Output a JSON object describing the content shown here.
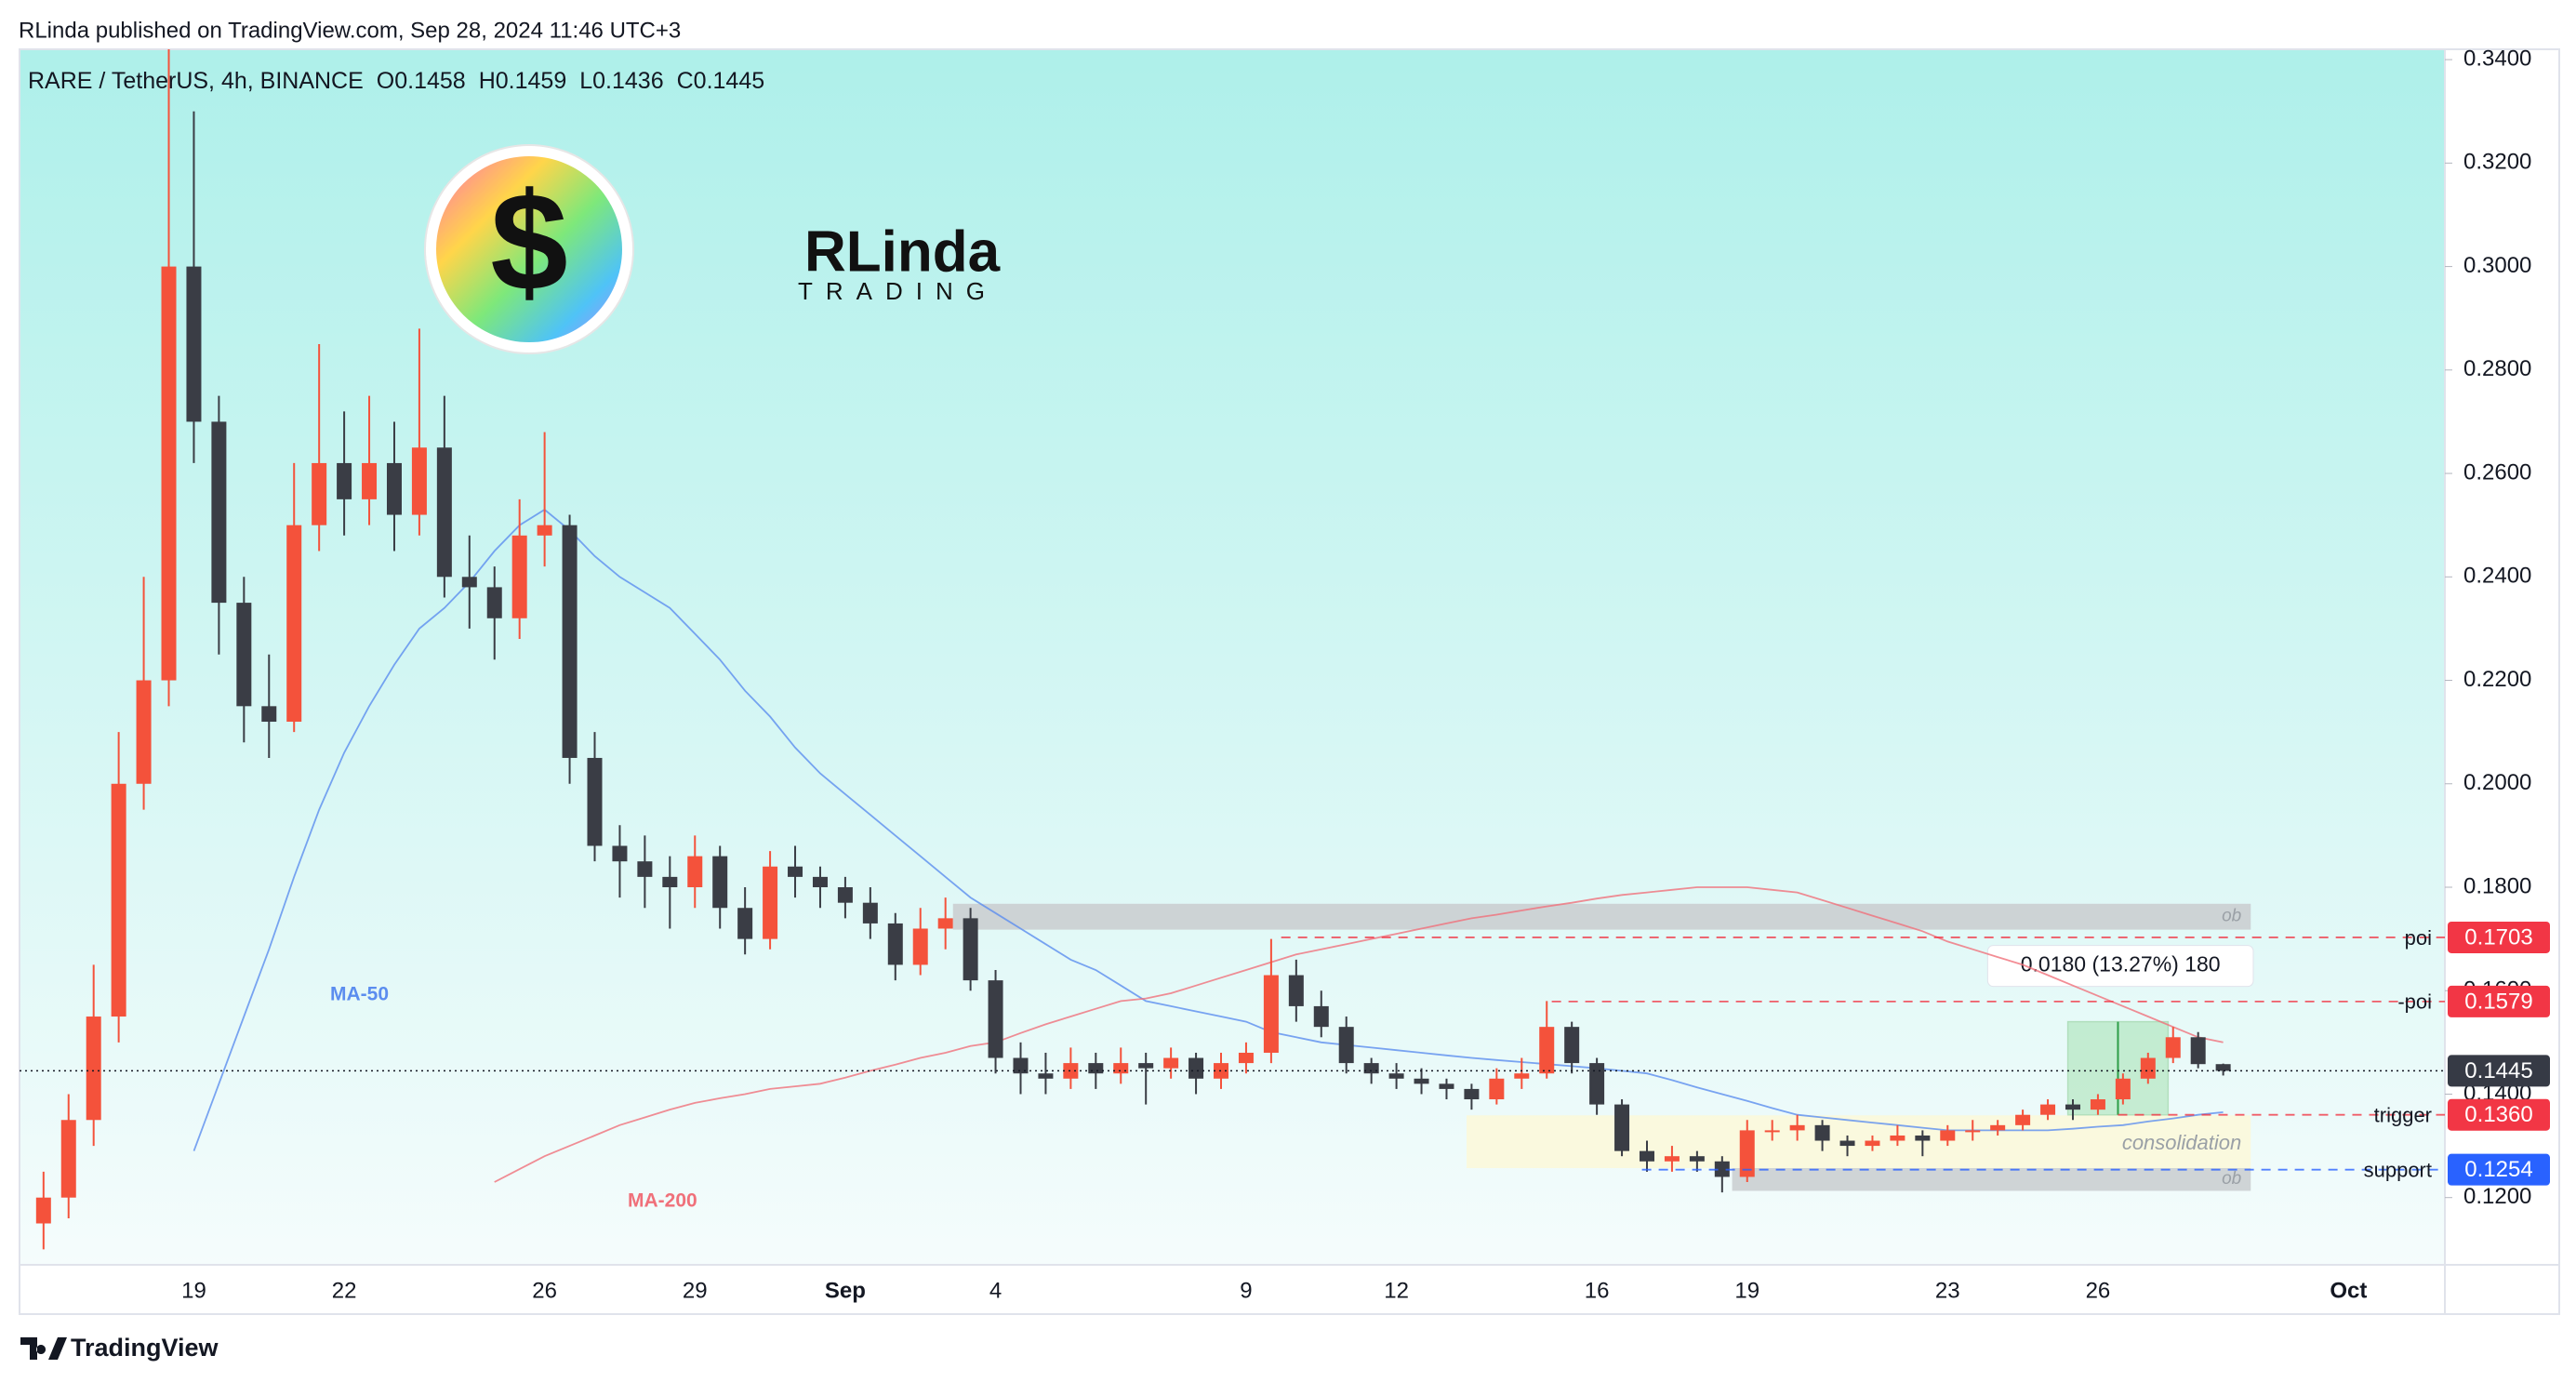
{
  "header": {
    "byline": "RLinda published on TradingView.com, Sep 28, 2024 11:46 UTC+3",
    "symbol": "RARE / TetherUS, 4h, BINANCE",
    "ohlc_letters": [
      "O",
      "H",
      "L",
      "C"
    ]
  },
  "logo": {
    "coin": "$",
    "name": "RLinda",
    "tagline": "TRADING"
  },
  "footer": "TradingView",
  "chart_data": {
    "type": "candlestick",
    "up_color": "#f4523b",
    "down_color": "#3a3d45",
    "categories": [
      null,
      null,
      null,
      null,
      null,
      null,
      "19",
      null,
      null,
      null,
      null,
      null,
      "22",
      null,
      null,
      null,
      null,
      null,
      null,
      null,
      "26",
      null,
      null,
      null,
      null,
      null,
      "29",
      null,
      null,
      null,
      null,
      null,
      "Sep",
      null,
      null,
      null,
      null,
      null,
      "4",
      null,
      null,
      null,
      null,
      null,
      null,
      null,
      null,
      null,
      "9",
      null,
      null,
      null,
      null,
      null,
      "12",
      null,
      null,
      null,
      null,
      null,
      null,
      null,
      "16",
      null,
      null,
      null,
      null,
      null,
      "19",
      null,
      null,
      null,
      null,
      null,
      null,
      null,
      "23",
      null,
      null,
      null,
      null,
      null,
      "26",
      null,
      null,
      null,
      null,
      null,
      null,
      null,
      null,
      null,
      "Oct"
    ],
    "ohlc": [
      [
        0.115,
        0.125,
        0.11,
        0.12
      ],
      [
        0.12,
        0.14,
        0.116,
        0.135
      ],
      [
        0.135,
        0.165,
        0.13,
        0.155
      ],
      [
        0.155,
        0.21,
        0.15,
        0.2
      ],
      [
        0.2,
        0.24,
        0.195,
        0.22
      ],
      [
        0.22,
        0.342,
        0.215,
        0.3
      ],
      [
        0.3,
        0.33,
        0.262,
        0.27
      ],
      [
        0.27,
        0.275,
        0.225,
        0.235
      ],
      [
        0.235,
        0.24,
        0.208,
        0.215
      ],
      [
        0.215,
        0.225,
        0.205,
        0.212
      ],
      [
        0.212,
        0.262,
        0.21,
        0.25
      ],
      [
        0.25,
        0.285,
        0.245,
        0.262
      ],
      [
        0.262,
        0.272,
        0.248,
        0.255
      ],
      [
        0.255,
        0.275,
        0.25,
        0.262
      ],
      [
        0.262,
        0.27,
        0.245,
        0.252
      ],
      [
        0.252,
        0.288,
        0.248,
        0.265
      ],
      [
        0.265,
        0.275,
        0.236,
        0.24
      ],
      [
        0.24,
        0.248,
        0.23,
        0.238
      ],
      [
        0.238,
        0.242,
        0.224,
        0.232
      ],
      [
        0.232,
        0.255,
        0.228,
        0.248
      ],
      [
        0.248,
        0.268,
        0.242,
        0.25
      ],
      [
        0.25,
        0.252,
        0.2,
        0.205
      ],
      [
        0.205,
        0.21,
        0.185,
        0.188
      ],
      [
        0.188,
        0.192,
        0.178,
        0.185
      ],
      [
        0.185,
        0.19,
        0.176,
        0.182
      ],
      [
        0.182,
        0.186,
        0.172,
        0.18
      ],
      [
        0.18,
        0.19,
        0.176,
        0.186
      ],
      [
        0.186,
        0.188,
        0.172,
        0.176
      ],
      [
        0.176,
        0.18,
        0.167,
        0.17
      ],
      [
        0.17,
        0.187,
        0.168,
        0.184
      ],
      [
        0.184,
        0.188,
        0.178,
        0.182
      ],
      [
        0.182,
        0.184,
        0.176,
        0.18
      ],
      [
        0.18,
        0.182,
        0.174,
        0.177
      ],
      [
        0.177,
        0.18,
        0.17,
        0.173
      ],
      [
        0.173,
        0.175,
        0.162,
        0.165
      ],
      [
        0.165,
        0.176,
        0.163,
        0.172
      ],
      [
        0.172,
        0.178,
        0.168,
        0.174
      ],
      [
        0.174,
        0.176,
        0.16,
        0.162
      ],
      [
        0.162,
        0.164,
        0.144,
        0.147
      ],
      [
        0.147,
        0.15,
        0.14,
        0.144
      ],
      [
        0.144,
        0.148,
        0.14,
        0.143
      ],
      [
        0.143,
        0.149,
        0.141,
        0.146
      ],
      [
        0.146,
        0.148,
        0.141,
        0.144
      ],
      [
        0.144,
        0.149,
        0.142,
        0.146
      ],
      [
        0.146,
        0.148,
        0.138,
        0.145
      ],
      [
        0.145,
        0.149,
        0.143,
        0.147
      ],
      [
        0.147,
        0.148,
        0.14,
        0.143
      ],
      [
        0.143,
        0.148,
        0.141,
        0.146
      ],
      [
        0.146,
        0.15,
        0.144,
        0.148
      ],
      [
        0.148,
        0.17,
        0.146,
        0.163
      ],
      [
        0.163,
        0.166,
        0.154,
        0.157
      ],
      [
        0.157,
        0.16,
        0.151,
        0.153
      ],
      [
        0.153,
        0.155,
        0.144,
        0.146
      ],
      [
        0.146,
        0.147,
        0.142,
        0.144
      ],
      [
        0.144,
        0.146,
        0.141,
        0.143
      ],
      [
        0.143,
        0.145,
        0.14,
        0.142
      ],
      [
        0.142,
        0.143,
        0.139,
        0.141
      ],
      [
        0.141,
        0.142,
        0.137,
        0.139
      ],
      [
        0.139,
        0.145,
        0.138,
        0.143
      ],
      [
        0.143,
        0.147,
        0.141,
        0.144
      ],
      [
        0.144,
        0.158,
        0.143,
        0.153
      ],
      [
        0.153,
        0.154,
        0.144,
        0.146
      ],
      [
        0.146,
        0.147,
        0.136,
        0.138
      ],
      [
        0.138,
        0.139,
        0.128,
        0.129
      ],
      [
        0.129,
        0.131,
        0.125,
        0.127
      ],
      [
        0.127,
        0.13,
        0.125,
        0.128
      ],
      [
        0.128,
        0.129,
        0.125,
        0.127
      ],
      [
        0.127,
        0.128,
        0.121,
        0.124
      ],
      [
        0.124,
        0.135,
        0.123,
        0.133
      ],
      [
        0.133,
        0.135,
        0.131,
        0.133
      ],
      [
        0.133,
        0.136,
        0.131,
        0.134
      ],
      [
        0.134,
        0.135,
        0.129,
        0.131
      ],
      [
        0.131,
        0.132,
        0.128,
        0.13
      ],
      [
        0.13,
        0.132,
        0.129,
        0.131
      ],
      [
        0.131,
        0.134,
        0.13,
        0.132
      ],
      [
        0.132,
        0.133,
        0.128,
        0.131
      ],
      [
        0.131,
        0.134,
        0.13,
        0.133
      ],
      [
        0.133,
        0.135,
        0.131,
        0.133
      ],
      [
        0.133,
        0.135,
        0.132,
        0.134
      ],
      [
        0.134,
        0.137,
        0.133,
        0.136
      ],
      [
        0.136,
        0.139,
        0.135,
        0.138
      ],
      [
        0.138,
        0.139,
        0.135,
        0.137
      ],
      [
        0.137,
        0.14,
        0.136,
        0.139
      ],
      [
        0.139,
        0.144,
        0.138,
        0.143
      ],
      [
        0.143,
        0.148,
        0.142,
        0.147
      ],
      [
        0.147,
        0.153,
        0.146,
        0.151
      ],
      [
        0.151,
        0.152,
        0.145,
        0.1458
      ],
      [
        0.1458,
        0.1459,
        0.1436,
        0.1445
      ],
      null,
      null,
      null,
      null,
      null
    ],
    "series": [
      {
        "name": "MA-50",
        "color": "#5b8def",
        "values": [
          null,
          null,
          null,
          null,
          null,
          null,
          0.129,
          0.142,
          0.155,
          0.168,
          0.182,
          0.195,
          0.206,
          0.215,
          0.223,
          0.23,
          0.234,
          0.239,
          0.245,
          0.25,
          0.253,
          0.249,
          0.244,
          0.24,
          0.237,
          0.234,
          0.229,
          0.224,
          0.218,
          0.213,
          0.207,
          0.202,
          0.198,
          0.194,
          0.19,
          0.186,
          0.182,
          0.178,
          0.175,
          0.172,
          0.169,
          0.166,
          0.164,
          0.161,
          0.158,
          0.157,
          0.156,
          0.155,
          0.154,
          0.152,
          0.151,
          0.15,
          0.1495,
          0.149,
          0.1485,
          0.148,
          0.1475,
          0.147,
          0.1466,
          0.1462,
          0.1458,
          0.1454,
          0.145,
          0.1445,
          0.144,
          0.1427,
          0.1413,
          0.14,
          0.1387,
          0.1373,
          0.136,
          0.1355,
          0.135,
          0.1345,
          0.134,
          0.1335,
          0.133,
          0.133,
          0.133,
          0.133,
          0.133,
          0.1333,
          0.1337,
          0.134,
          0.1347,
          0.1353,
          0.136,
          0.1365,
          null,
          null,
          null,
          null,
          null
        ]
      },
      {
        "name": "MA-200",
        "color": "#f0707a",
        "values": [
          null,
          null,
          null,
          null,
          null,
          null,
          null,
          null,
          null,
          null,
          null,
          null,
          null,
          null,
          null,
          null,
          null,
          null,
          0.123,
          0.1255,
          0.128,
          0.13,
          0.132,
          0.134,
          0.1355,
          0.137,
          0.1383,
          0.1392,
          0.14,
          0.141,
          0.1415,
          0.142,
          0.1432,
          0.1445,
          0.1457,
          0.147,
          0.148,
          0.1493,
          0.15,
          0.1518,
          0.1535,
          0.155,
          0.1565,
          0.158,
          0.1585,
          0.1595,
          0.161,
          0.1625,
          0.164,
          0.1655,
          0.167,
          0.168,
          0.169,
          0.17,
          0.171,
          0.172,
          0.173,
          0.174,
          0.1747,
          0.1755,
          0.1763,
          0.177,
          0.1778,
          0.1785,
          0.179,
          0.1795,
          0.18,
          0.18,
          0.18,
          0.1795,
          0.179,
          0.1775,
          0.176,
          0.1745,
          0.173,
          0.1715,
          0.1695,
          0.168,
          0.1665,
          0.165,
          0.163,
          0.161,
          0.159,
          0.157,
          0.155,
          0.153,
          0.151,
          0.15,
          null,
          null,
          null,
          null,
          null
        ]
      }
    ],
    "ylim": [
      0.107,
      0.342
    ],
    "yticks": [
      {
        "value": 0.12,
        "label": "0.1200"
      },
      {
        "value": 0.14,
        "label": "0.1400"
      },
      {
        "value": 0.16,
        "label": "0.1600"
      },
      {
        "value": 0.18,
        "label": "0.1800"
      },
      {
        "value": 0.2,
        "label": "0.2000"
      },
      {
        "value": 0.22,
        "label": "0.2200"
      },
      {
        "value": 0.24,
        "label": "0.2400"
      },
      {
        "value": 0.26,
        "label": "0.2600"
      },
      {
        "value": 0.28,
        "label": "0.2800"
      },
      {
        "value": 0.3,
        "label": "0.3000"
      },
      {
        "value": 0.32,
        "label": "0.3200"
      },
      {
        "value": 0.34,
        "label": "0.3400"
      }
    ],
    "grid": false,
    "zones": [
      {
        "label": "ob",
        "low": 0.1718,
        "high": 0.1768,
        "color": "#c9cccf"
      },
      {
        "label": "consolidation",
        "low": 0.1257,
        "high": 0.1359,
        "color": "#fbf8d8"
      },
      {
        "label": "ob",
        "low": 0.1213,
        "high": 0.1257,
        "color": "#c9cccf"
      }
    ],
    "measure": {
      "label": "0.0180 (13.27%) 180",
      "low": 0.136,
      "high": 0.154
    },
    "levels": [
      {
        "label": "poi",
        "value": 0.1703,
        "color": "#f23645"
      },
      {
        "label": "-poi",
        "value": 0.1579,
        "color": "#f23645"
      },
      {
        "label": "trigger",
        "value": 0.136,
        "value_label": "0.1360",
        "color": "#f23645"
      },
      {
        "label": "support",
        "value": 0.1254,
        "color": "#2962ff"
      }
    ]
  }
}
